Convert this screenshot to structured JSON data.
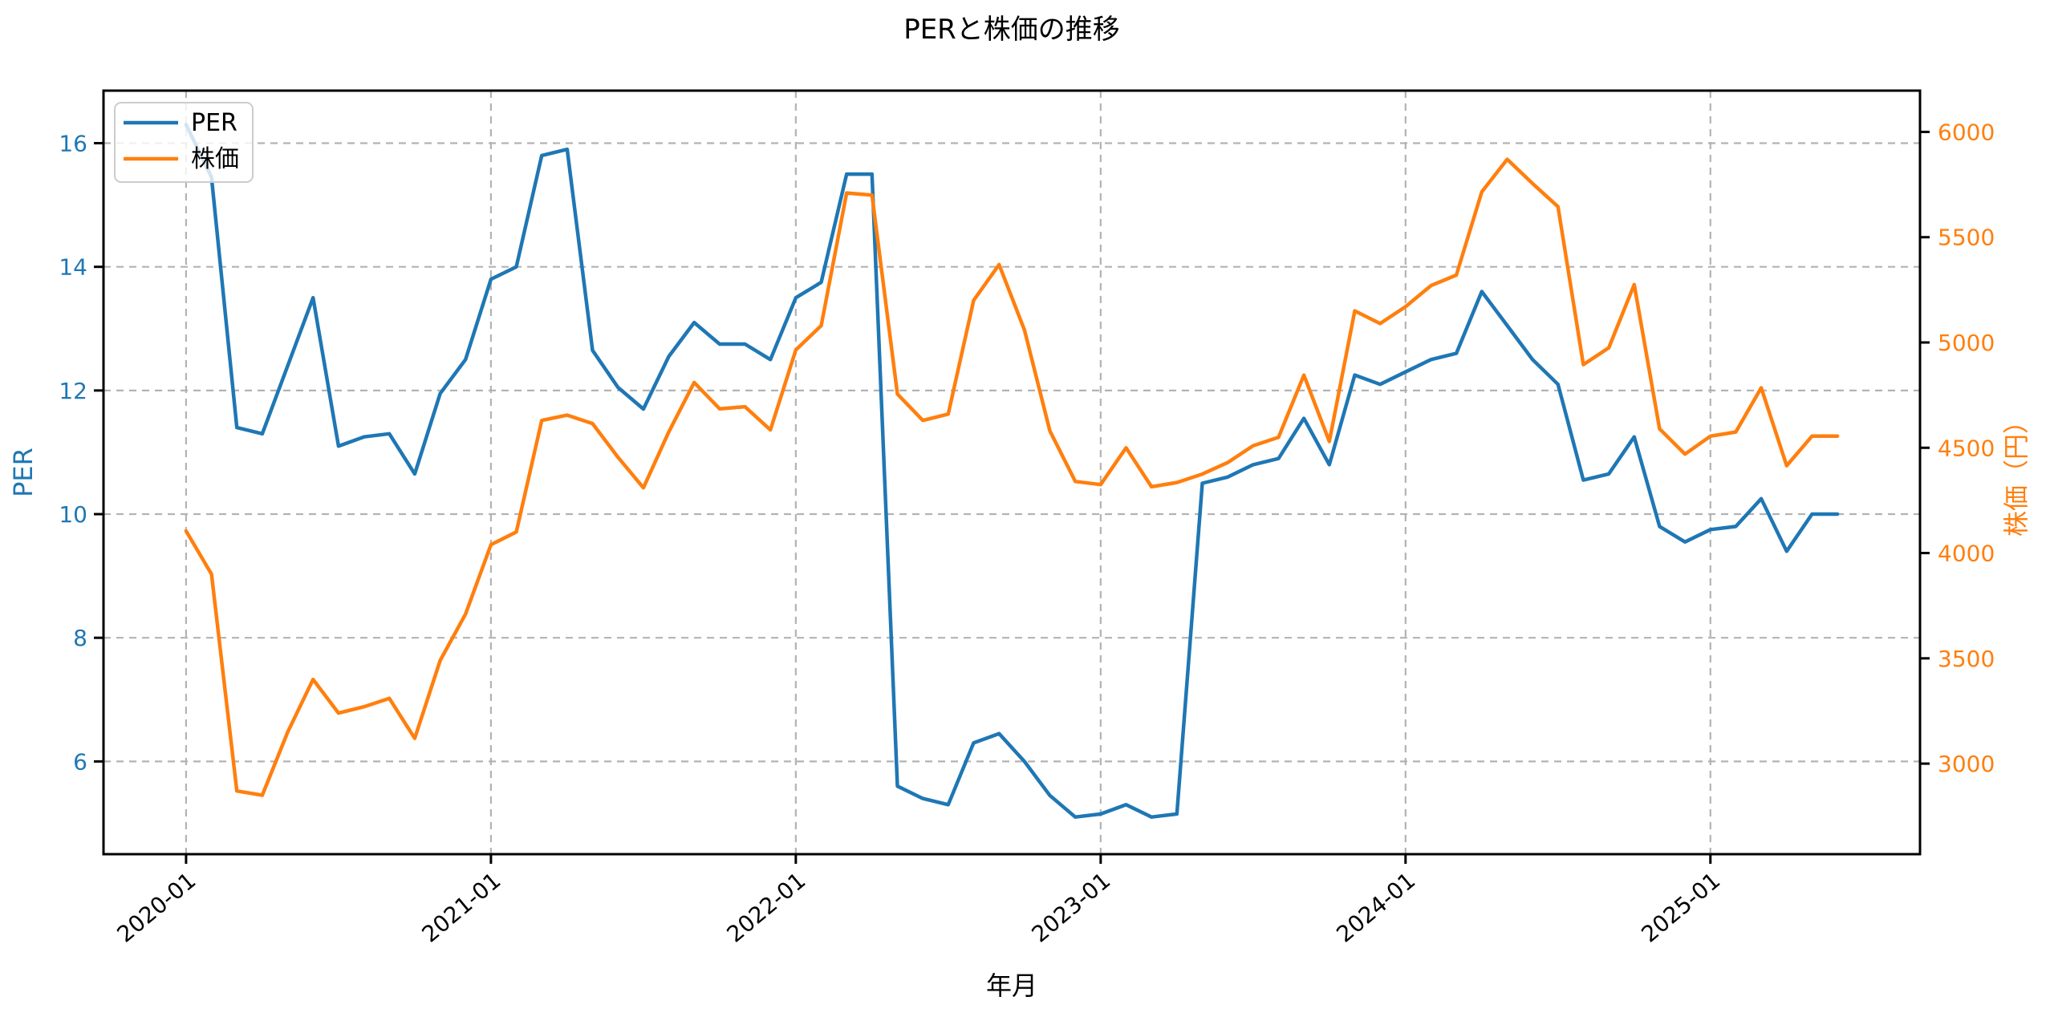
{
  "chart_data": {
    "type": "line",
    "title": "PERと株価の推移",
    "xlabel": "年月",
    "ylabel_left": "PER",
    "ylabel_right": "株価（円）",
    "grid": true,
    "legend_position": "upper left",
    "background_color": "#ffffff",
    "grid_color": "#b3b3b3",
    "spine_color": "#000000",
    "months": [
      "2020-01",
      "2020-02",
      "2020-03",
      "2020-04",
      "2020-05",
      "2020-06",
      "2020-07",
      "2020-08",
      "2020-09",
      "2020-10",
      "2020-11",
      "2020-12",
      "2021-01",
      "2021-02",
      "2021-03",
      "2021-04",
      "2021-05",
      "2021-06",
      "2021-07",
      "2021-08",
      "2021-09",
      "2021-10",
      "2021-11",
      "2021-12",
      "2022-01",
      "2022-02",
      "2022-03",
      "2022-04",
      "2022-05",
      "2022-06",
      "2022-07",
      "2022-08",
      "2022-09",
      "2022-10",
      "2022-11",
      "2022-12",
      "2023-01",
      "2023-02",
      "2023-03",
      "2023-04",
      "2023-05",
      "2023-06",
      "2023-07",
      "2023-08",
      "2023-09",
      "2023-10",
      "2023-11",
      "2023-12",
      "2024-01",
      "2024-02",
      "2024-03",
      "2024-04",
      "2024-05",
      "2024-06",
      "2024-07",
      "2024-08",
      "2024-09",
      "2024-10",
      "2024-11",
      "2024-12",
      "2025-01",
      "2025-02",
      "2025-03",
      "2025-04",
      "2025-05",
      "2025-06"
    ],
    "series": [
      {
        "name": "PER",
        "axis": "left",
        "color": "#1f77b4",
        "values": [
          16.3,
          15.45,
          11.4,
          11.3,
          12.4,
          13.5,
          11.1,
          11.25,
          11.3,
          10.65,
          11.95,
          12.5,
          13.8,
          14.0,
          15.8,
          15.9,
          12.65,
          12.05,
          11.7,
          12.55,
          13.1,
          12.75,
          12.75,
          12.5,
          13.5,
          13.75,
          15.5,
          15.5,
          5.6,
          5.4,
          5.3,
          6.3,
          6.45,
          6.0,
          5.45,
          5.1,
          5.15,
          5.3,
          5.1,
          5.15,
          10.5,
          10.6,
          10.8,
          10.9,
          11.55,
          10.8,
          12.25,
          12.1,
          12.3,
          12.5,
          12.6,
          13.6,
          13.05,
          12.5,
          12.1,
          10.55,
          10.65,
          11.25,
          9.8,
          9.55,
          9.75,
          9.8,
          10.25,
          9.4,
          10.0,
          10.0
        ]
      },
      {
        "name": "株価",
        "axis": "right",
        "color": "#ff7f0e",
        "values": [
          4105,
          3900,
          2870,
          2850,
          3150,
          3400,
          3240,
          3270,
          3310,
          3120,
          3490,
          3710,
          4040,
          4100,
          4630,
          4655,
          4615,
          4455,
          4310,
          4575,
          4810,
          4685,
          4695,
          4585,
          4965,
          5080,
          5710,
          5700,
          4755,
          4630,
          4660,
          5200,
          5370,
          5060,
          4580,
          4340,
          4325,
          4500,
          4315,
          4335,
          4375,
          4430,
          4510,
          4550,
          4845,
          4530,
          5150,
          5090,
          5170,
          5270,
          5320,
          5715,
          5870,
          5755,
          5645,
          4895,
          4975,
          5275,
          4590,
          4470,
          4555,
          4575,
          4785,
          4415,
          4555,
          4555
        ]
      }
    ],
    "x_ticks": [
      {
        "label": "2020-01",
        "month_index": 0
      },
      {
        "label": "2021-01",
        "month_index": 12
      },
      {
        "label": "2022-01",
        "month_index": 24
      },
      {
        "label": "2023-01",
        "month_index": 36
      },
      {
        "label": "2024-01",
        "month_index": 48
      },
      {
        "label": "2025-01",
        "month_index": 60
      }
    ],
    "y_left": {
      "ticks": [
        6,
        8,
        10,
        12,
        14,
        16
      ],
      "lim": [
        4.5,
        16.85
      ],
      "tick_color": "#1f77b4"
    },
    "y_right": {
      "ticks": [
        3000,
        3500,
        4000,
        4500,
        5000,
        5500,
        6000
      ],
      "lim": [
        2570,
        6196
      ],
      "tick_color": "#ff7f0e"
    },
    "legend": {
      "items": [
        "PER",
        "株価"
      ]
    }
  }
}
